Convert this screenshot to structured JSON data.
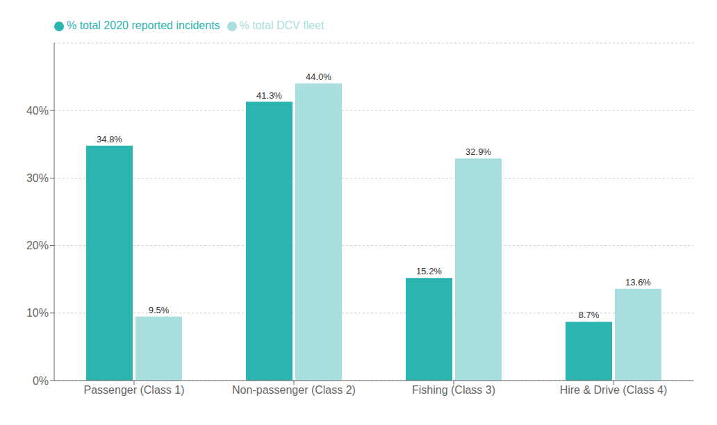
{
  "chart_data": {
    "type": "bar",
    "categories": [
      "Passenger (Class 1)",
      "Non-passenger (Class 2)",
      "Fishing (Class 3)",
      "Hire & Drive (Class 4)"
    ],
    "series": [
      {
        "name": "% total 2020 reported incidents",
        "color": "#2ab5b0",
        "values": [
          34.8,
          41.3,
          15.2,
          8.7
        ],
        "value_labels": [
          "34.8%",
          "41.3%",
          "15.2%",
          "8.7%"
        ]
      },
      {
        "name": "% total DCV fleet",
        "color": "#a8dedd",
        "values": [
          9.5,
          44.0,
          32.9,
          13.6
        ],
        "value_labels": [
          "9.5%",
          "44.0%",
          "32.9%",
          "13.6%"
        ]
      }
    ],
    "ylim": [
      0,
      50
    ],
    "yticks": [
      {
        "value": 0,
        "label": "0%"
      },
      {
        "value": 10,
        "label": "10%"
      },
      {
        "value": 20,
        "label": "20%"
      },
      {
        "value": 30,
        "label": "30%"
      },
      {
        "value": 40,
        "label": "40%"
      }
    ],
    "grid": true,
    "legend": "upper left",
    "data_labels": true
  }
}
